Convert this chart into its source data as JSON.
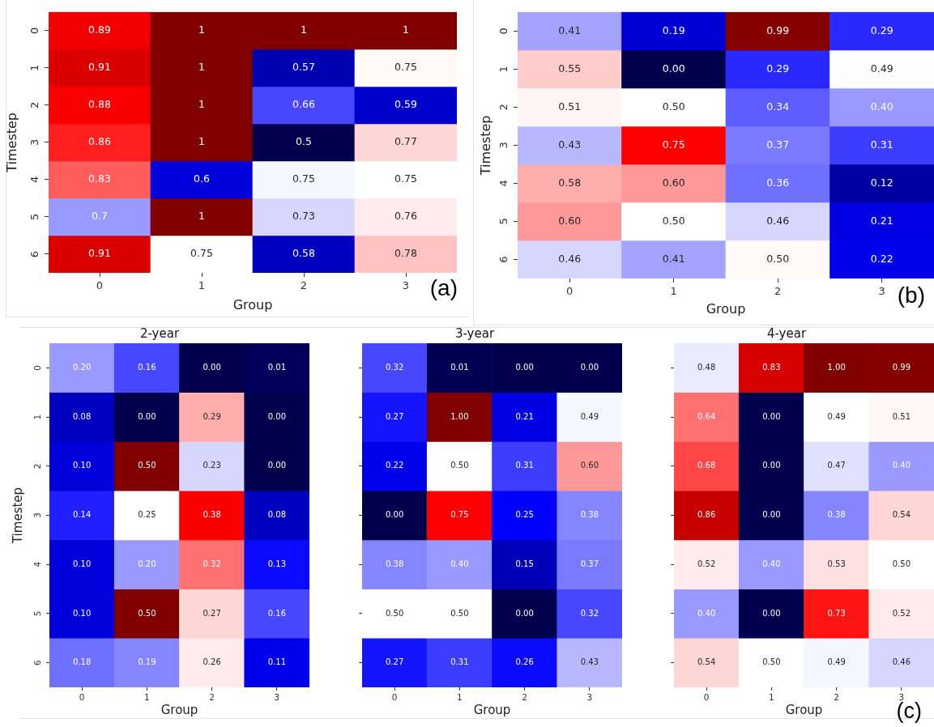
{
  "chart_data": [
    {
      "type": "heatmap",
      "xlabel": "Group",
      "ylabel": "Timestep",
      "categories": [
        "0",
        "1",
        "2",
        "3"
      ],
      "y_categories": [
        "0",
        "1",
        "2",
        "3",
        "4",
        "5",
        "6"
      ],
      "data_labels": true,
      "annotations": [
        "(a)"
      ],
      "cells": [
        [
          0.89,
          1,
          1,
          1
        ],
        [
          0.91,
          1,
          0.57,
          0.75
        ],
        [
          0.88,
          1,
          0.66,
          0.59
        ],
        [
          0.86,
          1,
          0.5,
          0.77
        ],
        [
          0.83,
          0.6,
          0.75,
          0.75
        ],
        [
          0.7,
          1,
          0.73,
          0.76
        ],
        [
          0.91,
          0.75,
          0.58,
          0.78
        ]
      ],
      "colors": [
        [
          "#f00000",
          "#800000",
          "#800000",
          "#800000"
        ],
        [
          "#db0000",
          "#800000",
          "#0000b0",
          "#fffaf5"
        ],
        [
          "#fa0000",
          "#800000",
          "#4747ff",
          "#0000cd"
        ],
        [
          "#ff1f1f",
          "#800000",
          "#00004d",
          "#ffd6d6"
        ],
        [
          "#ff5c5c",
          "#0000db",
          "#f5f7ff",
          "#ffffff"
        ],
        [
          "#9999ff",
          "#800000",
          "#d6d6ff",
          "#ffebeb"
        ],
        [
          "#db0000",
          "#ffffff",
          "#0000bf",
          "#ffc2c2"
        ]
      ]
    },
    {
      "type": "heatmap",
      "xlabel": "Group",
      "ylabel": "Timestep",
      "categories": [
        "0",
        "1",
        "2",
        "3"
      ],
      "y_categories": [
        "0",
        "1",
        "2",
        "3",
        "4",
        "5",
        "6"
      ],
      "data_labels": true,
      "annotations": [
        "(b)"
      ],
      "cells": [
        [
          0.41,
          0.19,
          0.99,
          0.29
        ],
        [
          0.55,
          0.0,
          0.29,
          0.49
        ],
        [
          0.51,
          0.5,
          0.34,
          0.4
        ],
        [
          0.43,
          0.75,
          0.37,
          0.31
        ],
        [
          0.58,
          0.6,
          0.36,
          0.12
        ],
        [
          0.6,
          0.5,
          0.46,
          0.21
        ],
        [
          0.46,
          0.41,
          0.5,
          0.22
        ]
      ],
      "cell_labels": [
        [
          "0.41",
          "0.19",
          "0.99",
          "0.29"
        ],
        [
          "0.55",
          "0.00",
          "0.29",
          "0.49"
        ],
        [
          "0.51",
          "0.50",
          "0.34",
          "0.40"
        ],
        [
          "0.43",
          "0.75",
          "0.37",
          "0.31"
        ],
        [
          "0.58",
          "0.60",
          "0.36",
          "0.12"
        ],
        [
          "0.60",
          "0.50",
          "0.46",
          "0.21"
        ],
        [
          "0.46",
          "0.41",
          "0.50",
          "0.22"
        ]
      ],
      "colors": [
        [
          "#a3a3ff",
          "#0000d4",
          "#850000",
          "#2929ff"
        ],
        [
          "#ffcccc",
          "#00004d",
          "#2929ff",
          "#fdfdff"
        ],
        [
          "#fff5f5",
          "#ffffff",
          "#5c5cff",
          "#9999ff"
        ],
        [
          "#b8b8ff",
          "#ff0000",
          "#7a7aff",
          "#3d3dff"
        ],
        [
          "#ffadad",
          "#ff9999",
          "#7070ff",
          "#0000a2"
        ],
        [
          "#ff9999",
          "#ffffff",
          "#d6d6ff",
          "#0000e2"
        ],
        [
          "#d6d6ff",
          "#a3a3ff",
          "#fffaf5",
          "#0000ea"
        ]
      ]
    },
    {
      "type": "heatmap",
      "title": "2-year",
      "xlabel": "Group",
      "ylabel": "Timestep",
      "categories": [
        "0",
        "1",
        "2",
        "3"
      ],
      "y_categories": [
        "0",
        "1",
        "2",
        "3",
        "4",
        "5",
        "6"
      ],
      "data_labels": true,
      "cells": [
        [
          0.2,
          0.16,
          0.0,
          0.01
        ],
        [
          0.08,
          0.0,
          0.29,
          0.0
        ],
        [
          0.1,
          0.5,
          0.23,
          0.0
        ],
        [
          0.14,
          0.25,
          0.38,
          0.08
        ],
        [
          0.1,
          0.2,
          0.32,
          0.13
        ],
        [
          0.1,
          0.5,
          0.27,
          0.16
        ],
        [
          0.18,
          0.19,
          0.26,
          0.11
        ]
      ],
      "cell_labels": [
        [
          "0.20",
          "0.16",
          "0.00",
          "0.01"
        ],
        [
          "0.08",
          "0.00",
          "0.29",
          "0.00"
        ],
        [
          "0.10",
          "0.50",
          "0.23",
          "0.00"
        ],
        [
          "0.14",
          "0.25",
          "0.38",
          "0.08"
        ],
        [
          "0.10",
          "0.20",
          "0.32",
          "0.13"
        ],
        [
          "0.10",
          "0.50",
          "0.27",
          "0.16"
        ],
        [
          "0.18",
          "0.19",
          "0.26",
          "0.11"
        ]
      ],
      "colors": [
        [
          "#9999ff",
          "#4747ff",
          "#00004d",
          "#00005b"
        ],
        [
          "#0000bf",
          "#00004d",
          "#ffadad",
          "#00004d"
        ],
        [
          "#0000db",
          "#800000",
          "#d6d6ff",
          "#00004d"
        ],
        [
          "#1f1fff",
          "#ffffff",
          "#fa0000",
          "#0000bf"
        ],
        [
          "#0000db",
          "#9999ff",
          "#ff7070",
          "#0a0aff"
        ],
        [
          "#0000db",
          "#800000",
          "#ffd6d6",
          "#4747ff"
        ],
        [
          "#7070ff",
          "#8585ff",
          "#ffebeb",
          "#0000ea"
        ]
      ]
    },
    {
      "type": "heatmap",
      "title": "3-year",
      "xlabel": "Group",
      "categories": [
        "0",
        "1",
        "2",
        "3"
      ],
      "y_categories": [
        "0",
        "1",
        "2",
        "3",
        "4",
        "5",
        "6"
      ],
      "tick_labels": "x",
      "data_labels": true,
      "cells": [
        [
          0.32,
          0.01,
          0.0,
          0.0
        ],
        [
          0.27,
          1.0,
          0.21,
          0.49
        ],
        [
          0.22,
          0.5,
          0.31,
          0.6
        ],
        [
          0.0,
          0.75,
          0.25,
          0.38
        ],
        [
          0.38,
          0.4,
          0.15,
          0.37
        ],
        [
          0.5,
          0.5,
          0.0,
          0.32
        ],
        [
          0.27,
          0.31,
          0.26,
          0.43
        ]
      ],
      "cell_labels": [
        [
          "0.32",
          "0.01",
          "0.00",
          "0.00"
        ],
        [
          "0.27",
          "1.00",
          "0.21",
          "0.49"
        ],
        [
          "0.22",
          "0.50",
          "0.31",
          "0.60"
        ],
        [
          "0.00",
          "0.75",
          "0.25",
          "0.38"
        ],
        [
          "0.38",
          "0.40",
          "0.15",
          "0.37"
        ],
        [
          "0.50",
          "0.50",
          "0.00",
          "0.32"
        ],
        [
          "0.27",
          "0.31",
          "0.26",
          "0.43"
        ]
      ],
      "colors": [
        [
          "#4747ff",
          "#000054",
          "#00004d",
          "#00004d"
        ],
        [
          "#1414ff",
          "#800000",
          "#0000e2",
          "#f5f8ff"
        ],
        [
          "#0000ea",
          "#ffffff",
          "#3d3dff",
          "#ff9999"
        ],
        [
          "#00004d",
          "#ff0000",
          "#0000ff",
          "#8585ff"
        ],
        [
          "#8585ff",
          "#9999ff",
          "#0000b8",
          "#7a7aff"
        ],
        [
          "#ffffff",
          "#ffffff",
          "#00004d",
          "#4747ff"
        ],
        [
          "#1414ff",
          "#3d3dff",
          "#0a0aff",
          "#b8b8ff"
        ]
      ]
    },
    {
      "type": "heatmap",
      "title": "4-year",
      "xlabel": "Group",
      "categories": [
        "0",
        "1",
        "2",
        "3"
      ],
      "y_categories": [
        "0",
        "1",
        "2",
        "3",
        "4",
        "5",
        "6"
      ],
      "tick_labels": "x",
      "data_labels": true,
      "annotations": [
        "(c)"
      ],
      "cells": [
        [
          0.48,
          0.83,
          1.0,
          0.99
        ],
        [
          0.64,
          0.0,
          0.49,
          0.51
        ],
        [
          0.68,
          0.0,
          0.47,
          0.4
        ],
        [
          0.86,
          0.0,
          0.38,
          0.54
        ],
        [
          0.52,
          0.4,
          0.53,
          0.5
        ],
        [
          0.4,
          0.0,
          0.73,
          0.52
        ],
        [
          0.54,
          0.5,
          0.49,
          0.46
        ]
      ],
      "cell_labels": [
        [
          "0.48",
          "0.83",
          "1.00",
          "0.99"
        ],
        [
          "0.64",
          "0.00",
          "0.49",
          "0.51"
        ],
        [
          "0.68",
          "0.00",
          "0.47",
          "0.40"
        ],
        [
          "0.86",
          "0.00",
          "0.38",
          "0.54"
        ],
        [
          "0.52",
          "0.40",
          "0.53",
          "0.50"
        ],
        [
          "0.40",
          "0.00",
          "0.73",
          "0.52"
        ],
        [
          "0.54",
          "0.50",
          "0.49",
          "0.46"
        ]
      ],
      "colors": [
        [
          "#ebebff",
          "#d60000",
          "#800000",
          "#850000"
        ],
        [
          "#ff7070",
          "#00004d",
          "#ffffff",
          "#fff8f5"
        ],
        [
          "#ff4747",
          "#00004d",
          "#e0e0ff",
          "#9999ff"
        ],
        [
          "#c70000",
          "#00004d",
          "#8585ff",
          "#ffd6d6"
        ],
        [
          "#ffebeb",
          "#9999ff",
          "#ffe0e0",
          "#ffffff"
        ],
        [
          "#9999ff",
          "#00004d",
          "#ff1414",
          "#ffebeb"
        ],
        [
          "#ffd6d6",
          "#ffffff",
          "#f5f5ff",
          "#d6d6ff"
        ]
      ]
    }
  ]
}
